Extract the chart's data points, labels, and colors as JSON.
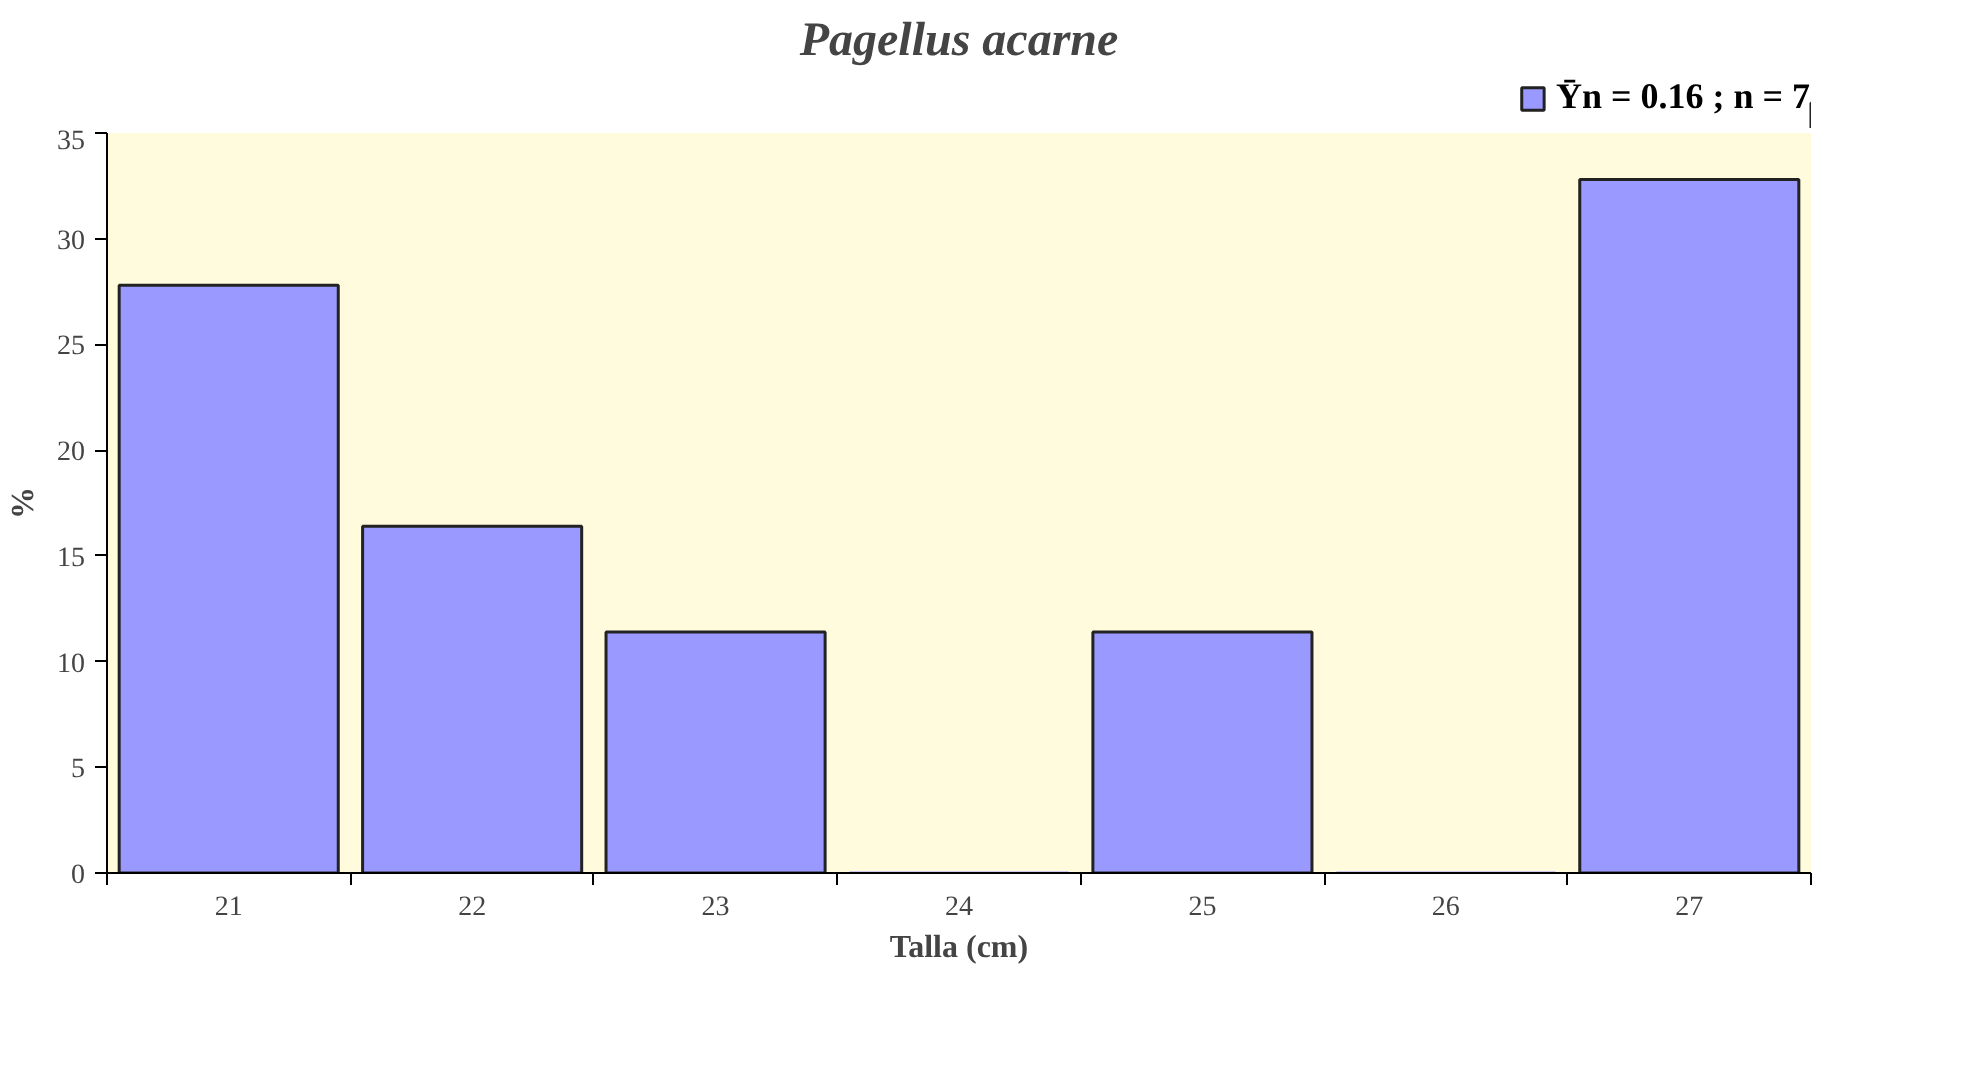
{
  "chart_data": {
    "type": "bar",
    "title": "Pagellus acarne",
    "xlabel": "Talla (cm)",
    "ylabel": "%",
    "categories": [
      "21",
      "22",
      "23",
      "24",
      "25",
      "26",
      "27"
    ],
    "series": [
      {
        "name": "Ȳn = 0.16 ; n = 7",
        "color": "#9999ff",
        "values": [
          27.8,
          16.4,
          11.4,
          0,
          11.4,
          0,
          32.8
        ]
      }
    ],
    "ylim": [
      0,
      35
    ],
    "yticks": [
      0,
      5,
      10,
      15,
      20,
      25,
      30,
      35
    ],
    "legend": "top right"
  }
}
